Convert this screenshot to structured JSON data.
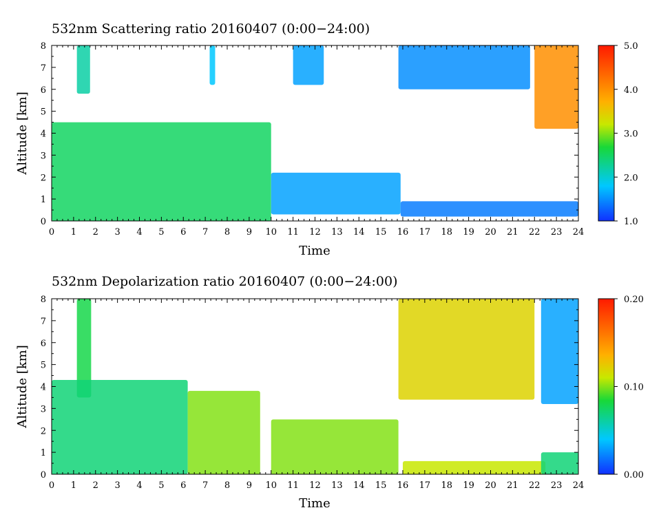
{
  "chart_data": [
    {
      "type": "heatmap",
      "title": "532nm Scattering ratio  20160407 (0:00−24:00)",
      "xlabel": "Time",
      "ylabel": "Altitude [km]",
      "xlim": [
        0,
        24
      ],
      "ylim": [
        0,
        8
      ],
      "x_ticks": [
        "0",
        "1",
        "2",
        "3",
        "4",
        "5",
        "6",
        "7",
        "8",
        "9",
        "10",
        "11",
        "12",
        "13",
        "14",
        "15",
        "16",
        "17",
        "18",
        "19",
        "20",
        "21",
        "22",
        "23",
        "24"
      ],
      "y_ticks": [
        "0",
        "1",
        "2",
        "3",
        "4",
        "5",
        "6",
        "7",
        "8"
      ],
      "colorbar": {
        "min": 1.0,
        "max": 5.0,
        "ticks": [
          "1.0",
          "2.0",
          "3.0",
          "4.0",
          "5.0"
        ],
        "colormap": "rainbow (blue-cyan-green-yellow-orange-red)"
      },
      "features": [
        {
          "x": [
            1.15,
            1.75
          ],
          "y": [
            5.8,
            8.0
          ],
          "level": 2.2
        },
        {
          "x": [
            7.2,
            7.45
          ],
          "y": [
            6.2,
            8.0
          ],
          "level": 1.8
        },
        {
          "x": [
            11.0,
            12.4
          ],
          "y": [
            6.2,
            8.0
          ],
          "level": 1.6
        },
        {
          "x": [
            15.8,
            21.8
          ],
          "y": [
            6.0,
            8.0
          ],
          "level": 1.5
        },
        {
          "x": [
            22.0,
            24.0
          ],
          "y": [
            4.2,
            8.0
          ],
          "level": 4.0
        },
        {
          "x": [
            0.0,
            10.0
          ],
          "y": [
            0.0,
            4.5
          ],
          "level": 2.5
        },
        {
          "x": [
            10.0,
            15.9
          ],
          "y": [
            0.3,
            2.2
          ],
          "level": 1.6
        },
        {
          "x": [
            15.9,
            24.0
          ],
          "y": [
            0.2,
            0.9
          ],
          "level": 1.4
        }
      ]
    },
    {
      "type": "heatmap",
      "title": "532nm Depolarization ratio  20160407 (0:00−24:00)",
      "xlabel": "Time",
      "ylabel": "Altitude [km]",
      "xlim": [
        0,
        24
      ],
      "ylim": [
        0,
        8
      ],
      "x_ticks": [
        "0",
        "1",
        "2",
        "3",
        "4",
        "5",
        "6",
        "7",
        "8",
        "9",
        "10",
        "11",
        "12",
        "13",
        "14",
        "15",
        "16",
        "17",
        "18",
        "19",
        "20",
        "21",
        "22",
        "23",
        "24"
      ],
      "y_ticks": [
        "0",
        "1",
        "2",
        "3",
        "4",
        "5",
        "6",
        "7",
        "8"
      ],
      "colorbar": {
        "min": 0.0,
        "max": 0.2,
        "ticks": [
          "0.00",
          "0.10",
          "0.20"
        ],
        "colormap": "rainbow (blue-cyan-green-yellow-orange-red)"
      },
      "features": [
        {
          "x": [
            1.15,
            1.8
          ],
          "y": [
            3.5,
            8.0
          ],
          "level": 0.08
        },
        {
          "x": [
            0.0,
            6.2
          ],
          "y": [
            0.0,
            4.3
          ],
          "level": 0.07
        },
        {
          "x": [
            6.2,
            9.5
          ],
          "y": [
            0.0,
            3.8
          ],
          "level": 0.1
        },
        {
          "x": [
            10.0,
            15.8
          ],
          "y": [
            0.0,
            2.5
          ],
          "level": 0.1
        },
        {
          "x": [
            15.8,
            22.0
          ],
          "y": [
            3.4,
            8.0
          ],
          "level": 0.12
        },
        {
          "x": [
            16.0,
            22.5
          ],
          "y": [
            0.0,
            0.6
          ],
          "level": 0.11
        },
        {
          "x": [
            22.3,
            24.0
          ],
          "y": [
            3.2,
            8.0
          ],
          "level": 0.03
        },
        {
          "x": [
            22.3,
            24.0
          ],
          "y": [
            0.0,
            1.0
          ],
          "level": 0.07
        }
      ]
    }
  ]
}
